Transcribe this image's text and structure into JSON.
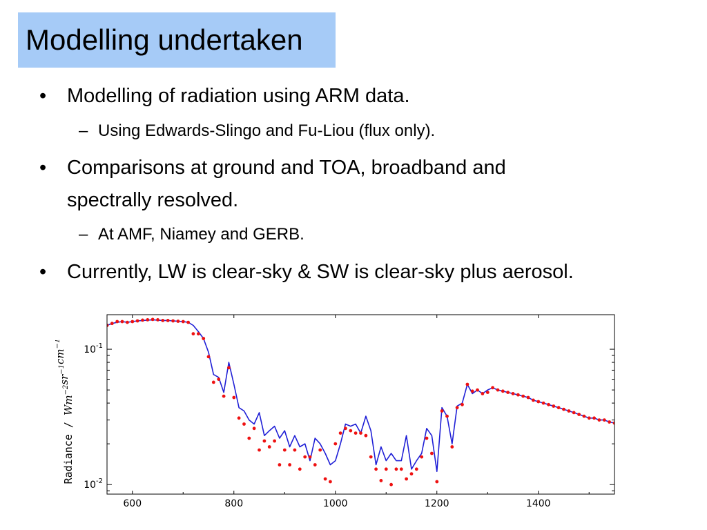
{
  "slide": {
    "title": "Modelling undertaken",
    "colors": {
      "title_bg": "#a6cbf7",
      "model_line": "#1f1fd6",
      "obs_points": "#ee1111"
    },
    "bullets": [
      {
        "marker": "•",
        "text": "Modelling of radiation using ARM data.",
        "subs": [
          {
            "marker": "–",
            "text": "Using Edwards-Slingo and Fu-Liou (flux only)."
          }
        ]
      },
      {
        "marker": "•",
        "lines": [
          "Comparisons at ground and TOA, broadband and",
          "spectrally resolved."
        ],
        "subs": [
          {
            "marker": "–",
            "text": "At AMF, Niamey and GERB."
          }
        ]
      },
      {
        "marker": "•",
        "text": "Currently, LW is clear-sky & SW is clear-sky plus aerosol."
      }
    ]
  },
  "chart_data": {
    "type": "line",
    "title": "",
    "xlabel": "",
    "ylabel": "Radiance / Wm⁻²sr⁻¹cm⁻¹",
    "ylabel_mono": "Radiance",
    "ylabel_unit_parts": [
      {
        "t": "Wm",
        "sup": false
      },
      {
        "t": "−2",
        "sup": true
      },
      {
        "t": "sr",
        "sup": false
      },
      {
        "t": "−1",
        "sup": true
      },
      {
        "t": "cm",
        "sup": false
      },
      {
        "t": "−1",
        "sup": true
      }
    ],
    "xlim": [
      550,
      1550
    ],
    "ylim": [
      0.0085,
      0.18
    ],
    "yscale": "log",
    "xticks": [
      600,
      800,
      1000,
      1200,
      1400
    ],
    "yticks": [
      {
        "value": 0.1,
        "base": "10",
        "exp": "-1"
      },
      {
        "value": 0.01,
        "base": "10",
        "exp": "-2"
      }
    ],
    "grid": false,
    "series": [
      {
        "style": "line",
        "x": [
          550,
          560,
          570,
          580,
          590,
          600,
          610,
          620,
          630,
          640,
          650,
          660,
          670,
          680,
          690,
          700,
          710,
          720,
          730,
          740,
          750,
          760,
          770,
          780,
          790,
          800,
          810,
          820,
          830,
          840,
          850,
          860,
          870,
          880,
          890,
          900,
          910,
          920,
          930,
          940,
          950,
          960,
          970,
          980,
          990,
          1000,
          1010,
          1020,
          1030,
          1040,
          1050,
          1060,
          1070,
          1080,
          1090,
          1100,
          1110,
          1120,
          1130,
          1140,
          1150,
          1160,
          1170,
          1180,
          1190,
          1200,
          1210,
          1220,
          1230,
          1240,
          1250,
          1260,
          1270,
          1280,
          1290,
          1300,
          1310,
          1320,
          1330,
          1340,
          1350,
          1360,
          1370,
          1380,
          1390,
          1400,
          1410,
          1420,
          1430,
          1440,
          1450,
          1460,
          1470,
          1480,
          1490,
          1500,
          1510,
          1520,
          1530,
          1540,
          1550
        ],
        "y": [
          0.15,
          0.155,
          0.158,
          0.16,
          0.158,
          0.16,
          0.162,
          0.163,
          0.164,
          0.165,
          0.164,
          0.163,
          0.163,
          0.162,
          0.161,
          0.16,
          0.158,
          0.15,
          0.135,
          0.12,
          0.095,
          0.065,
          0.062,
          0.048,
          0.08,
          0.055,
          0.037,
          0.035,
          0.03,
          0.028,
          0.034,
          0.023,
          0.025,
          0.027,
          0.022,
          0.025,
          0.019,
          0.023,
          0.019,
          0.02,
          0.015,
          0.022,
          0.02,
          0.017,
          0.014,
          0.015,
          0.02,
          0.028,
          0.027,
          0.028,
          0.024,
          0.032,
          0.025,
          0.014,
          0.019,
          0.015,
          0.017,
          0.015,
          0.015,
          0.023,
          0.013,
          0.015,
          0.017,
          0.026,
          0.023,
          0.0125,
          0.037,
          0.032,
          0.02,
          0.038,
          0.04,
          0.055,
          0.047,
          0.05,
          0.047,
          0.05,
          0.052,
          0.05,
          0.049,
          0.048,
          0.047,
          0.046,
          0.045,
          0.044,
          0.042,
          0.041,
          0.04,
          0.039,
          0.038,
          0.037,
          0.036,
          0.035,
          0.034,
          0.033,
          0.032,
          0.031,
          0.031,
          0.03,
          0.03,
          0.029,
          0.0285
        ]
      },
      {
        "style": "points",
        "x": [
          550,
          560,
          570,
          580,
          590,
          600,
          610,
          620,
          630,
          640,
          650,
          660,
          670,
          680,
          690,
          700,
          710,
          720,
          730,
          740,
          750,
          760,
          770,
          780,
          790,
          800,
          810,
          820,
          830,
          840,
          850,
          860,
          870,
          880,
          890,
          900,
          910,
          920,
          930,
          940,
          950,
          960,
          970,
          980,
          990,
          1000,
          1010,
          1020,
          1030,
          1040,
          1050,
          1060,
          1070,
          1080,
          1090,
          1100,
          1110,
          1120,
          1130,
          1140,
          1150,
          1160,
          1170,
          1180,
          1190,
          1200,
          1210,
          1220,
          1230,
          1240,
          1250,
          1260,
          1270,
          1280,
          1290,
          1300,
          1310,
          1320,
          1330,
          1340,
          1350,
          1360,
          1370,
          1380,
          1390,
          1400,
          1410,
          1420,
          1430,
          1440,
          1450,
          1460,
          1470,
          1480,
          1490,
          1500,
          1510,
          1520,
          1530,
          1540,
          1550
        ],
        "y": [
          0.15,
          0.155,
          0.16,
          0.16,
          0.158,
          0.16,
          0.162,
          0.164,
          0.165,
          0.166,
          0.165,
          0.163,
          0.163,
          0.162,
          0.161,
          0.16,
          0.158,
          0.13,
          0.13,
          0.12,
          0.088,
          0.057,
          0.06,
          0.045,
          0.073,
          0.044,
          0.031,
          0.028,
          0.022,
          0.026,
          0.018,
          0.021,
          0.019,
          0.021,
          0.014,
          0.018,
          0.014,
          0.018,
          0.013,
          0.016,
          0.016,
          0.014,
          0.018,
          0.011,
          0.0105,
          0.02,
          0.024,
          0.026,
          0.025,
          0.024,
          0.024,
          0.023,
          0.016,
          0.013,
          0.0107,
          0.013,
          0.01,
          0.013,
          0.013,
          0.011,
          0.012,
          0.013,
          0.016,
          0.022,
          0.017,
          0.0105,
          0.035,
          0.032,
          0.019,
          0.037,
          0.039,
          0.055,
          0.049,
          0.05,
          0.047,
          0.048,
          0.052,
          0.05,
          0.049,
          0.048,
          0.047,
          0.046,
          0.045,
          0.044,
          0.042,
          0.041,
          0.04,
          0.039,
          0.038,
          0.037,
          0.036,
          0.035,
          0.034,
          0.033,
          0.032,
          0.031,
          0.031,
          0.03,
          0.03,
          0.029,
          0.0285
        ]
      }
    ]
  }
}
